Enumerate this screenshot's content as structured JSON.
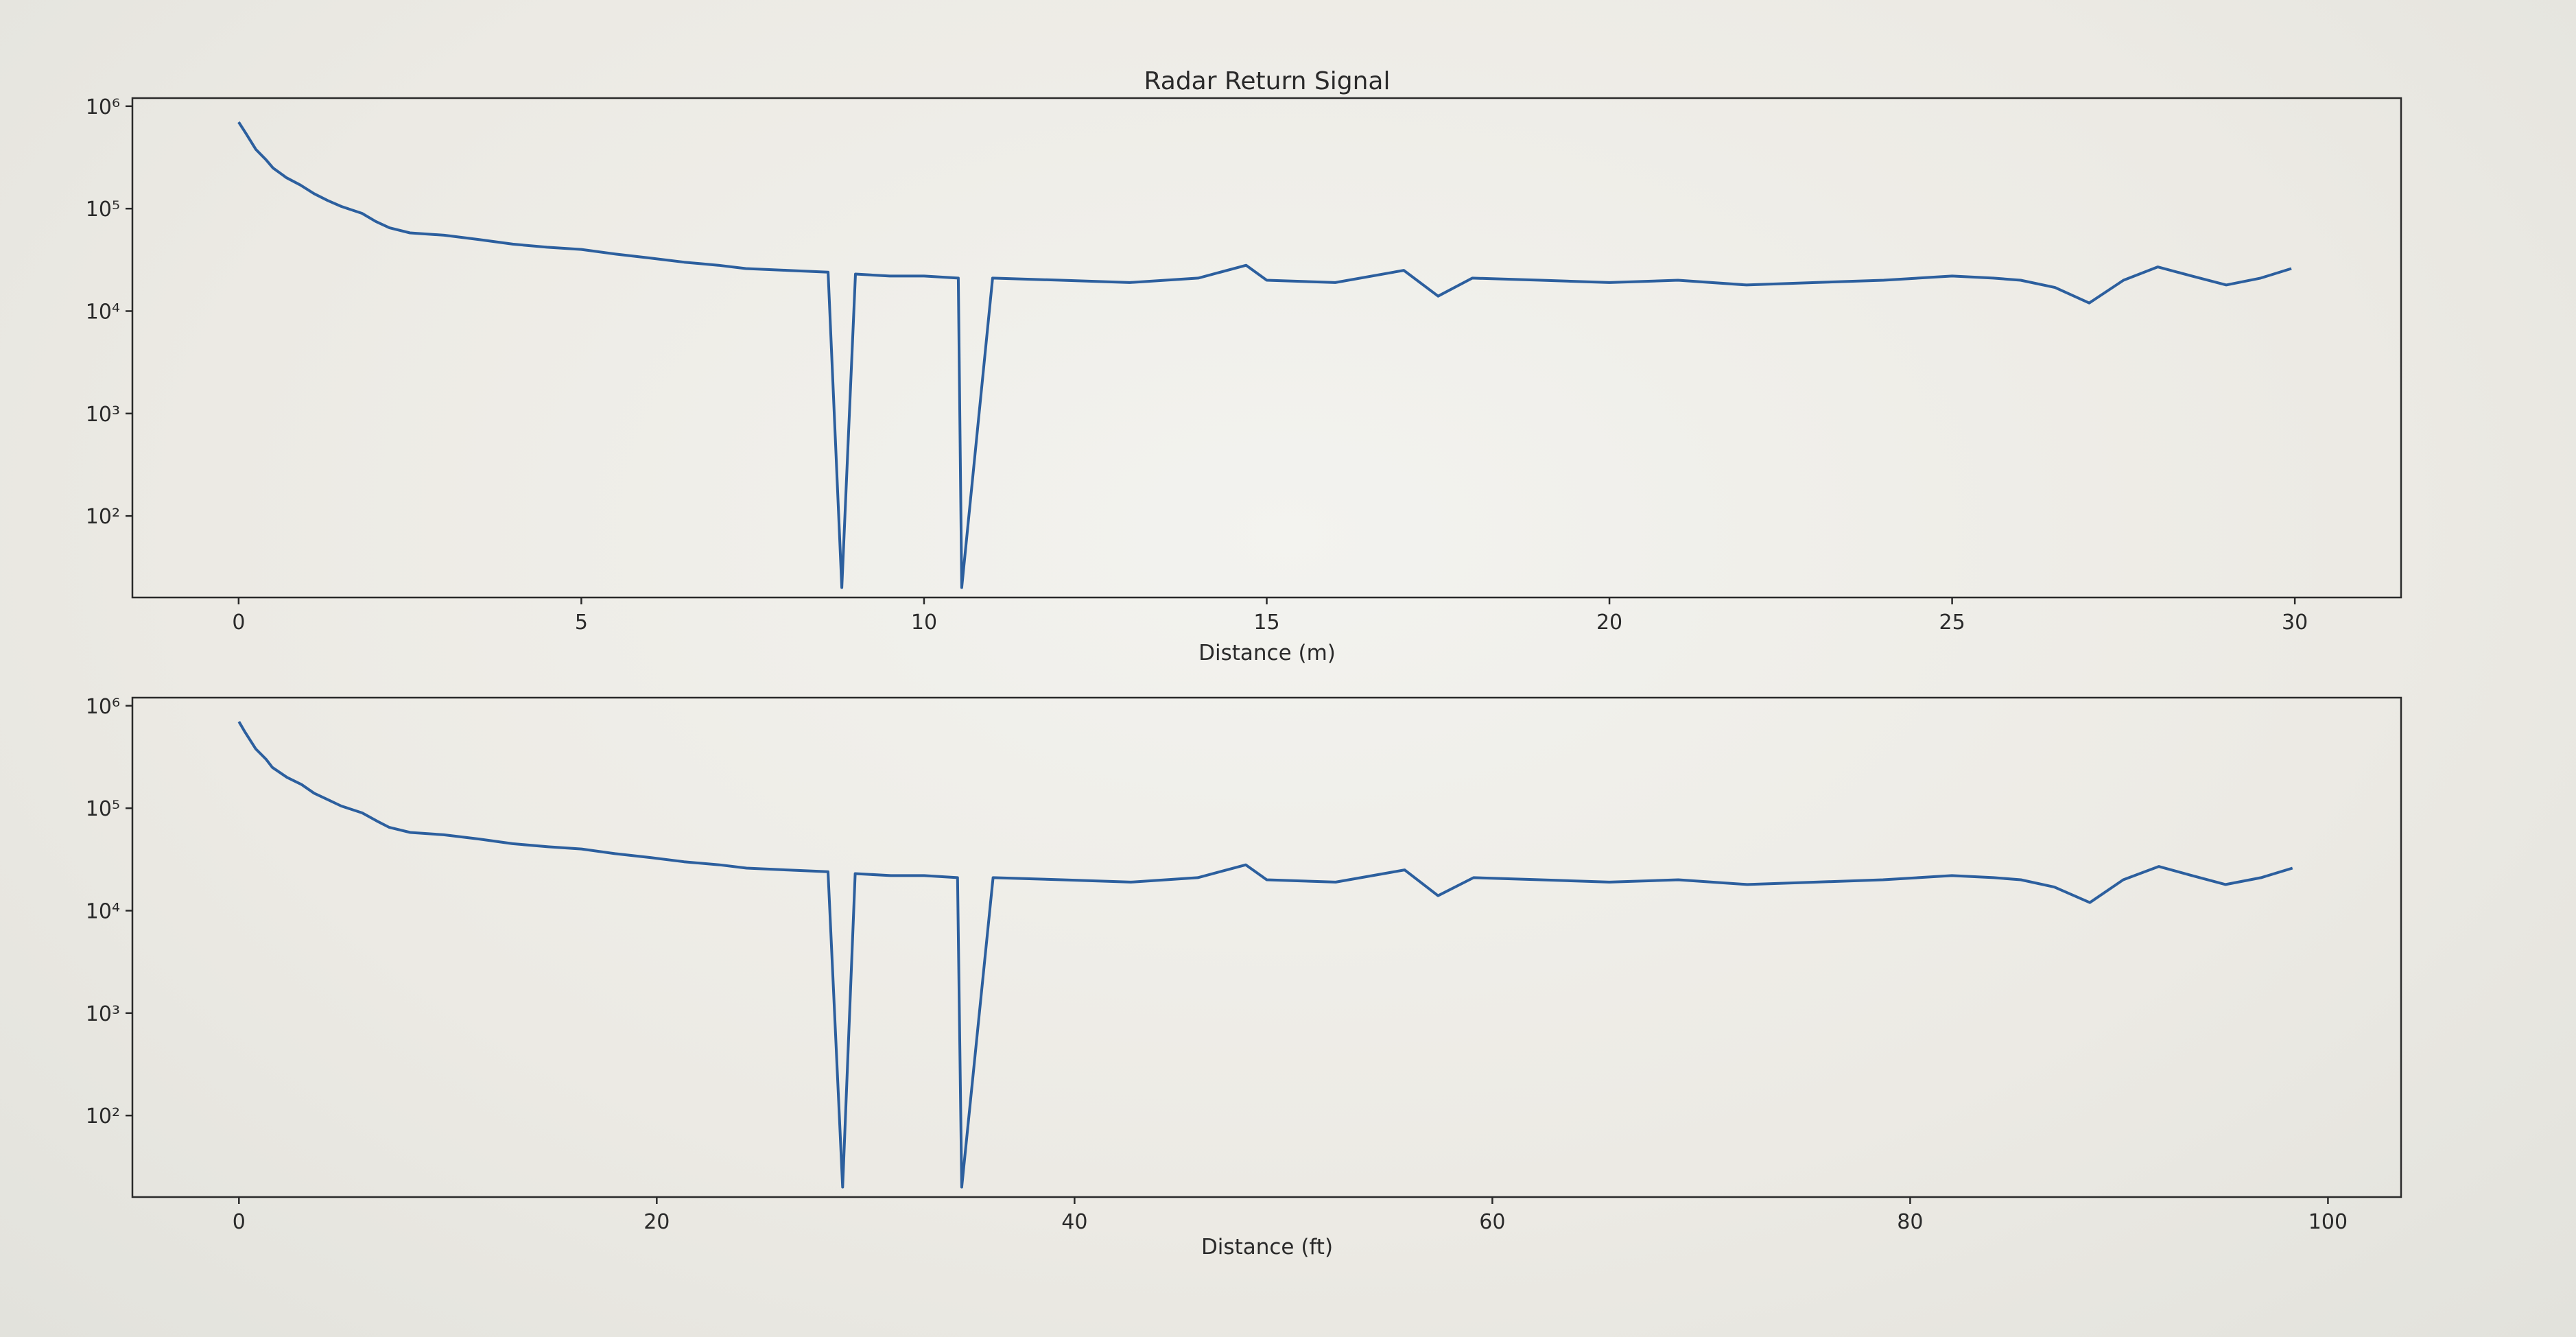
{
  "chart_data": [
    {
      "type": "line",
      "title": "Radar Return Signal",
      "xlabel": "Distance (m)",
      "ylabel": "",
      "xlim": [
        -1.55,
        31.55
      ],
      "ylim": [
        16,
        1200000
      ],
      "yscale": "log",
      "xticks": [
        0,
        5,
        10,
        15,
        20,
        25,
        30
      ],
      "xtick_labels": [
        "0",
        "5",
        "10",
        "15",
        "20",
        "25",
        "30"
      ],
      "yticks": [
        100,
        1000,
        10000,
        100000,
        1000000
      ],
      "ytick_labels": [
        "10²",
        "10³",
        "10⁴",
        "10⁵",
        "10⁶"
      ],
      "grid": false,
      "series": [
        {
          "color": "#2c5f9e",
          "x": [
            0,
            0.1,
            0.25,
            0.4,
            0.5,
            0.7,
            0.9,
            1.1,
            1.3,
            1.5,
            1.8,
            2.0,
            2.2,
            2.5,
            3.0,
            3.5,
            4.0,
            4.5,
            5.0,
            5.5,
            6.0,
            6.5,
            7.0,
            7.4,
            8.0,
            8.6,
            8.8,
            9.0,
            9.5,
            10.0,
            10.5,
            10.55,
            11.0,
            12.0,
            13.0,
            14.0,
            14.7,
            15.0,
            16.0,
            17.0,
            17.5,
            18.0,
            19.0,
            20.0,
            21.0,
            22.0,
            23.0,
            24.0,
            25.0,
            25.6,
            26.0,
            26.5,
            27.0,
            27.5,
            28.0,
            28.5,
            29.0,
            29.5,
            29.95
          ],
          "values": [
            700000,
            550000,
            380000,
            300000,
            250000,
            200000,
            170000,
            140000,
            120000,
            105000,
            90000,
            75000,
            65000,
            58000,
            55000,
            50000,
            45000,
            42000,
            40000,
            36000,
            33000,
            30000,
            28000,
            26000,
            25000,
            24000,
            20,
            23000,
            22000,
            22000,
            21000,
            20,
            21000,
            20000,
            19000,
            21000,
            28000,
            20000,
            19000,
            25000,
            14000,
            21000,
            20000,
            19000,
            20000,
            18000,
            19000,
            20000,
            22000,
            21000,
            20000,
            17000,
            12000,
            20000,
            27000,
            22000,
            18000,
            21000,
            26000
          ]
        }
      ]
    },
    {
      "type": "line",
      "title": "",
      "xlabel": "Distance (ft)",
      "ylabel": "",
      "xlim": [
        -5.1,
        103.5
      ],
      "ylim": [
        16,
        1200000
      ],
      "yscale": "log",
      "xticks": [
        0,
        20,
        40,
        60,
        80,
        100
      ],
      "xtick_labels": [
        "0",
        "20",
        "40",
        "60",
        "80",
        "100"
      ],
      "yticks": [
        100,
        1000,
        10000,
        100000,
        1000000
      ],
      "ytick_labels": [
        "10²",
        "10³",
        "10⁴",
        "10⁵",
        "10⁶"
      ],
      "grid": false,
      "series": [
        {
          "color": "#2c5f9e",
          "x": [
            0,
            0.3,
            0.8,
            1.3,
            1.6,
            2.3,
            3.0,
            3.6,
            4.3,
            4.9,
            5.9,
            6.6,
            7.2,
            8.2,
            9.8,
            11.5,
            13.1,
            14.8,
            16.4,
            18.0,
            19.7,
            21.3,
            23.0,
            24.3,
            26.2,
            28.2,
            28.9,
            29.5,
            31.2,
            32.8,
            34.4,
            34.6,
            36.1,
            39.4,
            42.7,
            45.9,
            48.2,
            49.2,
            52.5,
            55.8,
            57.4,
            59.1,
            62.3,
            65.6,
            68.9,
            72.2,
            75.5,
            78.7,
            82.0,
            84.0,
            85.3,
            86.9,
            88.6,
            90.2,
            91.9,
            93.5,
            95.1,
            96.8,
            98.3
          ],
          "values": [
            700000,
            550000,
            380000,
            300000,
            250000,
            200000,
            170000,
            140000,
            120000,
            105000,
            90000,
            75000,
            65000,
            58000,
            55000,
            50000,
            45000,
            42000,
            40000,
            36000,
            33000,
            30000,
            28000,
            26000,
            25000,
            24000,
            20,
            23000,
            22000,
            22000,
            21000,
            20,
            21000,
            20000,
            19000,
            21000,
            28000,
            20000,
            19000,
            25000,
            14000,
            21000,
            20000,
            19000,
            20000,
            18000,
            19000,
            20000,
            22000,
            21000,
            20000,
            17000,
            12000,
            20000,
            27000,
            22000,
            18000,
            21000,
            26000
          ]
        }
      ]
    }
  ]
}
